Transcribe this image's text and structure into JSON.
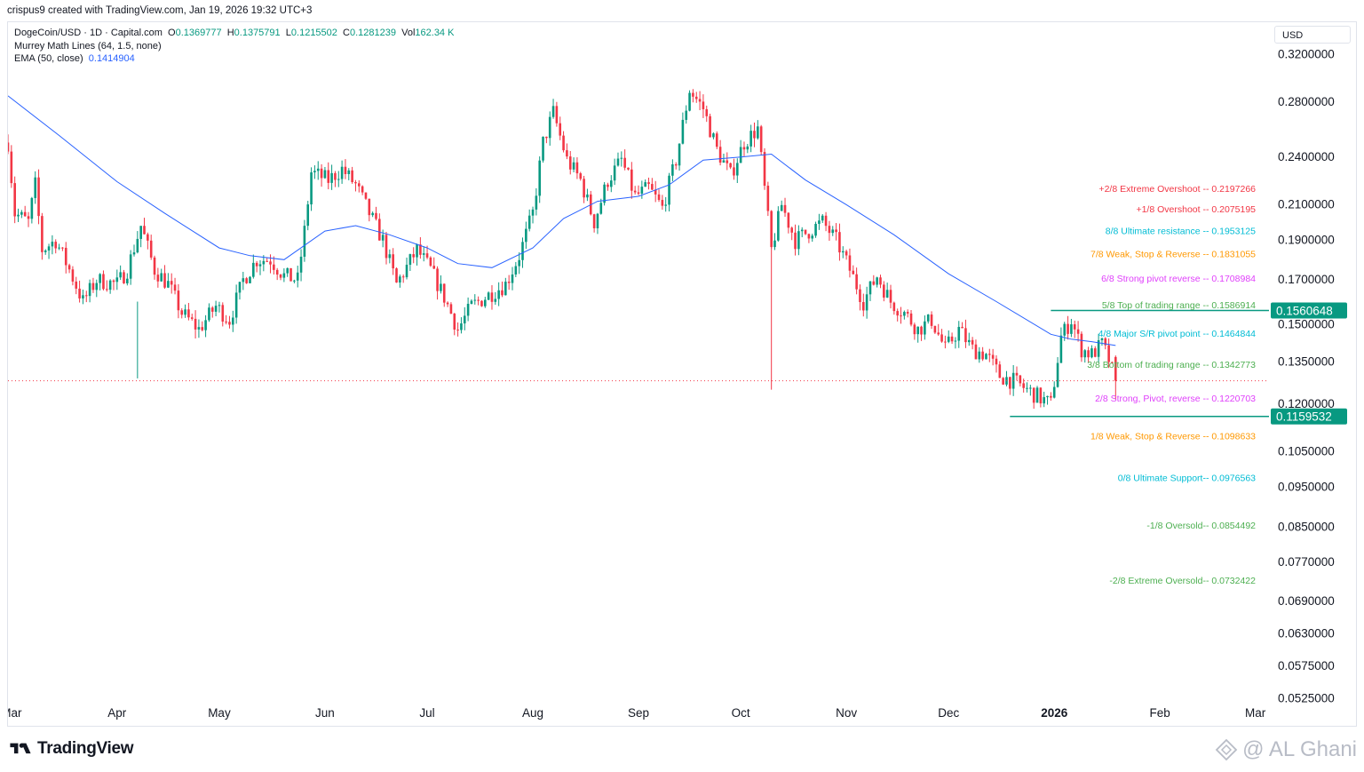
{
  "caption": "crispus9 created with TradingView.com, Jan 19, 2026 19:32 UTC+3",
  "legend": {
    "symbol": "DogeCoin/USD · 1D · Capital.com",
    "o_key": "O",
    "o_val": "0.1369777",
    "h_key": "H",
    "h_val": "0.1375791",
    "l_key": "L",
    "l_val": "0.1215502",
    "c_key": "C",
    "c_val": "0.1281239",
    "vol_key": "Vol",
    "vol_val": "162.34 K",
    "indicator1": "Murrey Math Lines (64, 1.5, none)",
    "indicator2": "EMA (50, close)",
    "ema_val": "0.1414904"
  },
  "currency": "USD",
  "footer": {
    "brand": "TradingView",
    "watermark": "@ AL Ghani"
  },
  "chart_data": {
    "type": "candlestick",
    "y_scale": "log",
    "ylim": [
      0.0522,
      0.335
    ],
    "price_ticks": [
      "0.3200000",
      "0.2800000",
      "0.2400000",
      "0.2100000",
      "0.1900000",
      "0.1700000",
      "0.1500000",
      "0.1350000",
      "0.1200000",
      "0.1050000",
      "0.0950000",
      "0.0850000",
      "0.0770000",
      "0.0690000",
      "0.0630000",
      "0.0575000",
      "0.0525000"
    ],
    "month_labels": [
      "Mar",
      "Apr",
      "May",
      "Jun",
      "Jul",
      "Aug",
      "Sep",
      "Oct",
      "Nov",
      "Dec",
      "2026",
      "Feb",
      "Mar"
    ],
    "x_range": [
      "2025-02-28",
      "2026-03-05"
    ],
    "months_x": [
      "2025-03-01",
      "2025-04-01",
      "2025-05-01",
      "2025-06-01",
      "2025-07-01",
      "2025-08-01",
      "2025-09-01",
      "2025-10-01",
      "2025-11-01",
      "2025-12-01",
      "2026-01-01",
      "2026-02-01",
      "2026-03-01"
    ],
    "close_path": [
      {
        "d": "2025-02-28",
        "c": 0.25
      },
      {
        "d": "2025-03-02",
        "c": 0.205
      },
      {
        "d": "2025-03-06",
        "c": 0.2
      },
      {
        "d": "2025-03-08",
        "c": 0.222
      },
      {
        "d": "2025-03-10",
        "c": 0.185
      },
      {
        "d": "2025-03-14",
        "c": 0.19
      },
      {
        "d": "2025-03-18",
        "c": 0.175
      },
      {
        "d": "2025-03-22",
        "c": 0.16
      },
      {
        "d": "2025-03-26",
        "c": 0.17
      },
      {
        "d": "2025-04-01",
        "c": 0.168
      },
      {
        "d": "2025-04-04",
        "c": 0.175
      },
      {
        "d": "2025-04-08",
        "c": 0.198
      },
      {
        "d": "2025-04-12",
        "c": 0.175
      },
      {
        "d": "2025-04-16",
        "c": 0.168
      },
      {
        "d": "2025-04-20",
        "c": 0.155
      },
      {
        "d": "2025-04-25",
        "c": 0.148
      },
      {
        "d": "2025-04-30",
        "c": 0.158
      },
      {
        "d": "2025-05-04",
        "c": 0.152
      },
      {
        "d": "2025-05-08",
        "c": 0.17
      },
      {
        "d": "2025-05-12",
        "c": 0.18
      },
      {
        "d": "2025-05-16",
        "c": 0.18
      },
      {
        "d": "2025-05-20",
        "c": 0.172
      },
      {
        "d": "2025-05-24",
        "c": 0.17
      },
      {
        "d": "2025-05-26",
        "c": 0.195
      },
      {
        "d": "2025-05-28",
        "c": 0.23
      },
      {
        "d": "2025-06-02",
        "c": 0.225
      },
      {
        "d": "2025-06-06",
        "c": 0.232
      },
      {
        "d": "2025-06-10",
        "c": 0.222
      },
      {
        "d": "2025-06-14",
        "c": 0.205
      },
      {
        "d": "2025-06-18",
        "c": 0.19
      },
      {
        "d": "2025-06-22",
        "c": 0.168
      },
      {
        "d": "2025-06-28",
        "c": 0.185
      },
      {
        "d": "2025-07-02",
        "c": 0.175
      },
      {
        "d": "2025-07-06",
        "c": 0.162
      },
      {
        "d": "2025-07-10",
        "c": 0.148
      },
      {
        "d": "2025-07-14",
        "c": 0.158
      },
      {
        "d": "2025-07-18",
        "c": 0.162
      },
      {
        "d": "2025-07-24",
        "c": 0.168
      },
      {
        "d": "2025-07-28",
        "c": 0.182
      },
      {
        "d": "2025-08-01",
        "c": 0.205
      },
      {
        "d": "2025-08-04",
        "c": 0.25
      },
      {
        "d": "2025-08-07",
        "c": 0.272
      },
      {
        "d": "2025-08-11",
        "c": 0.238
      },
      {
        "d": "2025-08-15",
        "c": 0.225
      },
      {
        "d": "2025-08-19",
        "c": 0.2
      },
      {
        "d": "2025-08-23",
        "c": 0.225
      },
      {
        "d": "2025-08-27",
        "c": 0.238
      },
      {
        "d": "2025-08-31",
        "c": 0.215
      },
      {
        "d": "2025-09-04",
        "c": 0.22
      },
      {
        "d": "2025-09-08",
        "c": 0.208
      },
      {
        "d": "2025-09-12",
        "c": 0.238
      },
      {
        "d": "2025-09-16",
        "c": 0.29
      },
      {
        "d": "2025-09-20",
        "c": 0.275
      },
      {
        "d": "2025-09-24",
        "c": 0.245
      },
      {
        "d": "2025-09-28",
        "c": 0.228
      },
      {
        "d": "2025-10-02",
        "c": 0.25
      },
      {
        "d": "2025-10-06",
        "c": 0.26
      },
      {
        "d": "2025-10-10",
        "c": 0.185
      },
      {
        "d": "2025-10-13",
        "c": 0.21
      },
      {
        "d": "2025-10-17",
        "c": 0.19
      },
      {
        "d": "2025-10-21",
        "c": 0.195
      },
      {
        "d": "2025-10-25",
        "c": 0.2
      },
      {
        "d": "2025-10-29",
        "c": 0.19
      },
      {
        "d": "2025-11-02",
        "c": 0.175
      },
      {
        "d": "2025-11-06",
        "c": 0.16
      },
      {
        "d": "2025-11-10",
        "c": 0.172
      },
      {
        "d": "2025-11-14",
        "c": 0.16
      },
      {
        "d": "2025-11-18",
        "c": 0.155
      },
      {
        "d": "2025-11-22",
        "c": 0.148
      },
      {
        "d": "2025-11-26",
        "c": 0.152
      },
      {
        "d": "2025-11-30",
        "c": 0.14
      },
      {
        "d": "2025-12-04",
        "c": 0.148
      },
      {
        "d": "2025-12-08",
        "c": 0.14
      },
      {
        "d": "2025-12-12",
        "c": 0.138
      },
      {
        "d": "2025-12-16",
        "c": 0.13
      },
      {
        "d": "2025-12-20",
        "c": 0.128
      },
      {
        "d": "2025-12-24",
        "c": 0.125
      },
      {
        "d": "2025-12-28",
        "c": 0.122
      },
      {
        "d": "2025-12-31",
        "c": 0.12
      },
      {
        "d": "2026-01-03",
        "c": 0.145
      },
      {
        "d": "2026-01-06",
        "c": 0.152
      },
      {
        "d": "2026-01-09",
        "c": 0.14
      },
      {
        "d": "2026-01-12",
        "c": 0.138
      },
      {
        "d": "2026-01-15",
        "c": 0.142
      },
      {
        "d": "2026-01-17",
        "c": 0.136
      },
      {
        "d": "2026-01-19",
        "c": 0.128
      }
    ],
    "ema_path": [
      {
        "d": "2025-02-28",
        "v": 0.285
      },
      {
        "d": "2025-03-15",
        "v": 0.255
      },
      {
        "d": "2025-04-01",
        "v": 0.224
      },
      {
        "d": "2025-04-15",
        "v": 0.205
      },
      {
        "d": "2025-05-01",
        "v": 0.186
      },
      {
        "d": "2025-05-10",
        "v": 0.182
      },
      {
        "d": "2025-05-20",
        "v": 0.18
      },
      {
        "d": "2025-06-01",
        "v": 0.195
      },
      {
        "d": "2025-06-10",
        "v": 0.198
      },
      {
        "d": "2025-06-20",
        "v": 0.193
      },
      {
        "d": "2025-07-01",
        "v": 0.186
      },
      {
        "d": "2025-07-10",
        "v": 0.178
      },
      {
        "d": "2025-07-20",
        "v": 0.176
      },
      {
        "d": "2025-08-01",
        "v": 0.186
      },
      {
        "d": "2025-08-10",
        "v": 0.202
      },
      {
        "d": "2025-08-20",
        "v": 0.212
      },
      {
        "d": "2025-09-01",
        "v": 0.215
      },
      {
        "d": "2025-09-10",
        "v": 0.222
      },
      {
        "d": "2025-09-20",
        "v": 0.238
      },
      {
        "d": "2025-10-01",
        "v": 0.24
      },
      {
        "d": "2025-10-10",
        "v": 0.242
      },
      {
        "d": "2025-10-20",
        "v": 0.225
      },
      {
        "d": "2025-11-01",
        "v": 0.21
      },
      {
        "d": "2025-11-15",
        "v": 0.193
      },
      {
        "d": "2025-12-01",
        "v": 0.173
      },
      {
        "d": "2025-12-15",
        "v": 0.16
      },
      {
        "d": "2025-12-31",
        "v": 0.146
      },
      {
        "d": "2026-01-06",
        "v": 0.144
      },
      {
        "d": "2026-01-12",
        "v": 0.143
      },
      {
        "d": "2026-01-19",
        "v": 0.1414904
      }
    ],
    "last_close": 0.1281239,
    "last_close_date": "2026-01-19",
    "murrey_levels": [
      {
        "label": "+2/8 Extreme Overshoot --  0.2197266",
        "price": 0.2197266,
        "color": "#f23645"
      },
      {
        "label": "+1/8 Overshoot --  0.2075195",
        "price": 0.2075195,
        "color": "#f23645"
      },
      {
        "label": "8/8 Ultimate resistance --  0.1953125",
        "price": 0.1953125,
        "color": "#00bcd4"
      },
      {
        "label": "7/8 Weak, Stop & Reverse --  0.1831055",
        "price": 0.1831055,
        "color": "#ff9800"
      },
      {
        "label": "6/8 Strong pivot reverse --  0.1708984",
        "price": 0.1708984,
        "color": "#e040fb"
      },
      {
        "label": "5/8 Top of trading range --  0.1586914",
        "price": 0.1586914,
        "color": "#4caf50"
      },
      {
        "label": "4/8 Major S/R pivot point --  0.1464844",
        "price": 0.1464844,
        "color": "#00bcd4"
      },
      {
        "label": "3/8 Bottom of trading range --  0.1342773",
        "price": 0.1342773,
        "color": "#4caf50"
      },
      {
        "label": "2/8 Strong, Pivot, reverse --  0.1220703",
        "price": 0.1220703,
        "color": "#e040fb"
      },
      {
        "label": "1/8 Weak, Stop & Reverse --  0.1098633",
        "price": 0.1098633,
        "color": "#ff9800"
      },
      {
        "label": "0/8 Ultimate Support--  0.0976563",
        "price": 0.0976563,
        "color": "#00bcd4"
      },
      {
        "label": "-1/8 Oversold--  0.0854492",
        "price": 0.0854492,
        "color": "#4caf50"
      },
      {
        "label": "-2/8 Extreme Oversold--  0.0732422",
        "price": 0.0732422,
        "color": "#4caf50"
      }
    ],
    "horizontal_lines": [
      {
        "price": 0.1560648,
        "label": "0.1560648",
        "start": "2025-12-31",
        "color": "#089981"
      },
      {
        "price": 0.1159532,
        "label": "0.1159532",
        "start": "2025-12-19",
        "color": "#089981"
      }
    ],
    "colors": {
      "up": "#089981",
      "down": "#f23645",
      "wick_up": "#089981",
      "ema": "#2962ff",
      "last_line": "#f23645",
      "accent": "#089981"
    }
  }
}
